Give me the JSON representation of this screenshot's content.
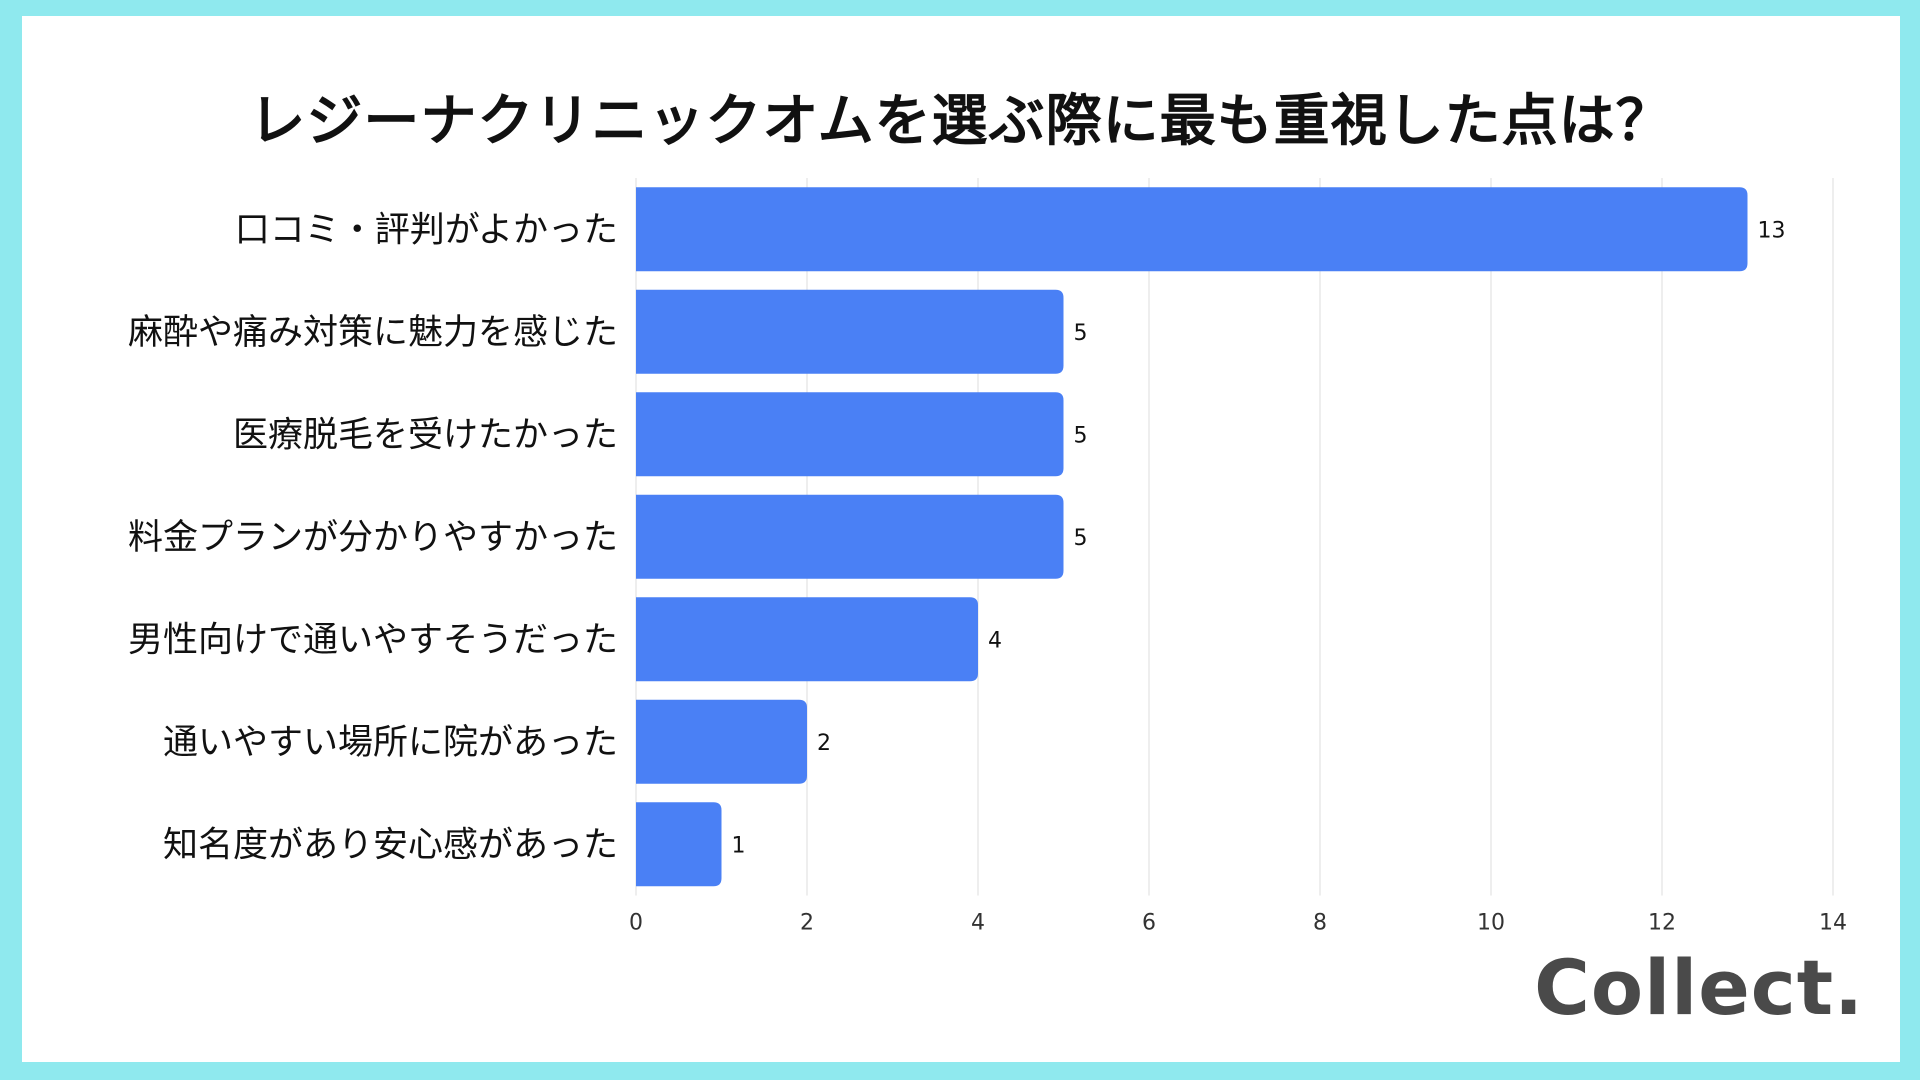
{
  "title": "レジーナクリニックオムを選ぶ際に最も重視した点は？",
  "logo": "Collect.",
  "colors": {
    "bar": "#4a80f5",
    "background": "#8fe9ee",
    "grid": "#dcdcdc"
  },
  "chart_data": {
    "type": "bar",
    "orientation": "horizontal",
    "title": "レジーナクリニックオムを選ぶ際に最も重視した点は？",
    "categories": [
      "口コミ・評判がよかった",
      "麻酔や痛み対策に魅力を感じた",
      "医療脱毛を受けたかった",
      "料金プランが分かりやすかった",
      "男性向けで通いやすそうだった",
      "通いやすい場所に院があった",
      "知名度があり安心感があった"
    ],
    "values": [
      13,
      5,
      5,
      5,
      4,
      2,
      1
    ],
    "xlim": [
      0,
      14
    ],
    "xticks": [
      0,
      2,
      4,
      6,
      8,
      10,
      12,
      14
    ],
    "grid": true,
    "xlabel": "",
    "ylabel": ""
  }
}
